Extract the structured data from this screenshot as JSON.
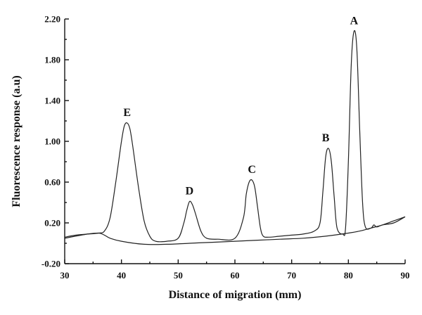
{
  "chart_data": {
    "type": "line",
    "title": "",
    "xlabel": "Distance of migration (mm)",
    "ylabel": "Fluorescence response (a.u)",
    "xlim": [
      30,
      90
    ],
    "ylim": [
      -0.2,
      2.2
    ],
    "xticks": [
      "30",
      "40",
      "50",
      "60",
      "70",
      "80",
      "90"
    ],
    "yticks": [
      "-0.20",
      "0.20",
      "0.60",
      "1.00",
      "1.40",
      "1.80",
      "2.20"
    ],
    "grid": false,
    "series": [
      {
        "x": [
          30,
          32,
          34,
          36,
          37,
          38,
          39,
          40,
          40.5,
          41,
          41.5,
          42,
          43,
          44,
          45,
          46,
          48,
          50,
          51,
          51.5,
          52,
          52.5,
          53,
          54,
          55,
          57,
          60,
          61.5,
          62,
          62.5,
          63,
          63.5,
          64,
          64.5,
          65,
          66,
          68,
          70,
          72,
          74,
          75,
          75.5,
          76,
          76.5,
          77,
          77.5,
          78,
          79,
          79.5,
          80,
          80.5,
          81,
          81.5,
          82,
          82.5,
          83,
          84,
          84.5,
          85,
          86,
          88,
          90
        ],
        "values": [
          0.06,
          0.08,
          0.09,
          0.1,
          0.12,
          0.25,
          0.6,
          1.0,
          1.15,
          1.18,
          1.12,
          0.95,
          0.55,
          0.22,
          0.07,
          0.02,
          0.02,
          0.05,
          0.2,
          0.32,
          0.41,
          0.38,
          0.3,
          0.12,
          0.05,
          0.04,
          0.05,
          0.25,
          0.48,
          0.6,
          0.62,
          0.55,
          0.35,
          0.15,
          0.07,
          0.06,
          0.07,
          0.08,
          0.09,
          0.12,
          0.2,
          0.5,
          0.85,
          0.93,
          0.8,
          0.45,
          0.15,
          0.09,
          0.15,
          0.8,
          1.75,
          2.08,
          1.9,
          1.1,
          0.4,
          0.16,
          0.15,
          0.18,
          0.16,
          0.18,
          0.2,
          0.26
        ]
      },
      {
        "x": [
          30,
          34,
          36,
          37,
          38,
          40,
          44,
          48,
          52,
          56,
          60,
          64,
          68,
          72,
          76,
          80,
          82,
          84,
          86,
          88,
          90
        ],
        "values": [
          0.05,
          0.09,
          0.1,
          0.08,
          0.05,
          0.02,
          -0.01,
          -0.01,
          0.0,
          0.01,
          0.02,
          0.03,
          0.04,
          0.05,
          0.07,
          0.1,
          0.12,
          0.15,
          0.18,
          0.22,
          0.26
        ]
      }
    ],
    "annotations": [
      {
        "text": "A",
        "x": 81,
        "y": 2.08
      },
      {
        "text": "B",
        "x": 76,
        "y": 0.93
      },
      {
        "text": "C",
        "x": 63,
        "y": 0.62
      },
      {
        "text": "D",
        "x": 52,
        "y": 0.41
      },
      {
        "text": "E",
        "x": 41,
        "y": 1.18
      }
    ]
  }
}
